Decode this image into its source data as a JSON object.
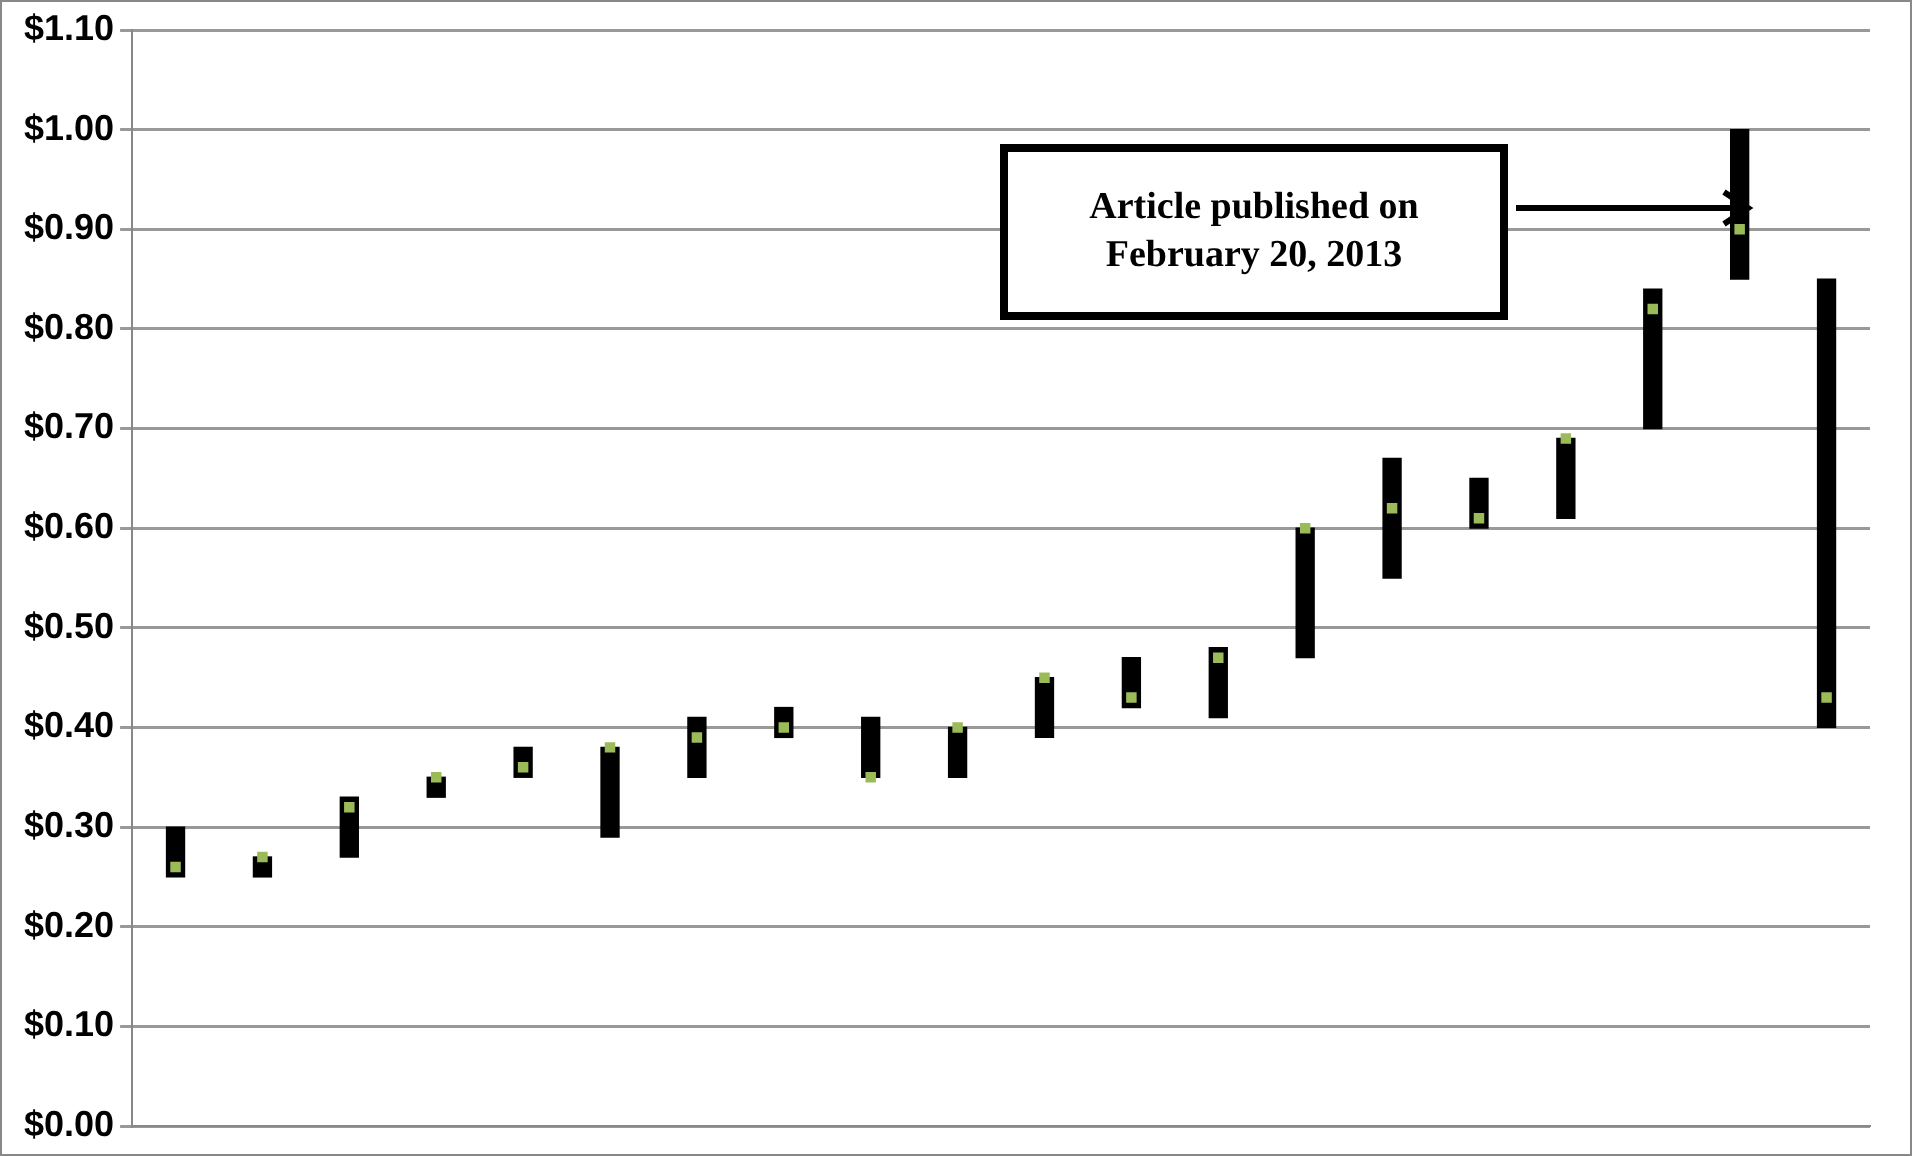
{
  "chart_data": {
    "type": "bar",
    "categories": [
      null,
      null,
      null,
      null,
      null,
      null,
      null,
      null,
      null,
      null,
      null,
      null,
      null,
      null,
      null,
      null,
      null,
      null,
      null,
      null
    ],
    "series": [
      {
        "color": "#000000",
        "base": [
          0.25,
          0.25,
          0.27,
          0.33,
          0.35,
          0.29,
          0.35,
          0.39,
          0.35,
          0.35,
          0.39,
          0.42,
          0.41,
          0.47,
          0.55,
          0.6,
          0.61,
          0.7,
          0.85,
          0.4
        ],
        "values": [
          0.05,
          0.02,
          0.06,
          0.02,
          0.03,
          0.09,
          0.06,
          0.03,
          0.06,
          0.05,
          0.06,
          0.05,
          0.07,
          0.13,
          0.12,
          0.05,
          0.08,
          0.14,
          0.15,
          0.45
        ]
      },
      {
        "type": "scatter",
        "color": "#9bbb59",
        "marker": "square",
        "values": [
          0.26,
          0.27,
          0.32,
          0.35,
          0.36,
          0.38,
          0.39,
          0.4,
          0.35,
          0.4,
          0.45,
          0.43,
          0.47,
          0.6,
          0.62,
          0.61,
          0.69,
          0.82,
          0.9,
          0.43
        ]
      }
    ],
    "ylim": [
      0,
      1.1
    ],
    "yticks": [
      {
        "value": 0,
        "label": "$0.00"
      },
      {
        "value": 0.1,
        "label": "$0.10"
      },
      {
        "value": 0.2,
        "label": "$0.20"
      },
      {
        "value": 0.3,
        "label": "$0.30"
      },
      {
        "value": 0.4,
        "label": "$0.40"
      },
      {
        "value": 0.5,
        "label": "$0.50"
      },
      {
        "value": 0.6,
        "label": "$0.60"
      },
      {
        "value": 0.7,
        "label": "$0.70"
      },
      {
        "value": 0.8,
        "label": "$0.80"
      },
      {
        "value": 0.9,
        "label": "$0.90"
      },
      {
        "value": 1.0,
        "label": "$1.00"
      },
      {
        "value": 1.1,
        "label": "$1.10"
      }
    ],
    "grid": "y",
    "tick_labels": "y",
    "legend": false,
    "annotations": [
      "Article published on February 20, 2013"
    ]
  }
}
